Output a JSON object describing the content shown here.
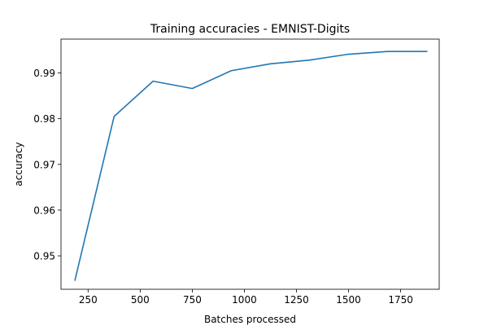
{
  "chart_data": {
    "type": "line",
    "title": "Training accuracies - EMNIST-Digits",
    "xlabel": "Batches processed",
    "ylabel": "accuracy",
    "xlim": [
      120,
      1935
    ],
    "ylim": [
      0.9427,
      0.9974
    ],
    "xticks": [
      250,
      500,
      750,
      1000,
      1250,
      1500,
      1750
    ],
    "xtick_labels": [
      "250",
      "500",
      "750",
      "1000",
      "1250",
      "1500",
      "1750"
    ],
    "yticks": [
      0.95,
      0.96,
      0.97,
      0.98,
      0.99
    ],
    "ytick_labels": [
      "0.95",
      "0.96",
      "0.97",
      "0.98",
      "0.99"
    ],
    "grid": false,
    "series": [
      {
        "color": "#1f77b4",
        "x": [
          187,
          375,
          562,
          750,
          937,
          1125,
          1312,
          1500,
          1687,
          1875
        ],
        "y": [
          0.9447,
          0.9805,
          0.9882,
          0.9866,
          0.9905,
          0.992,
          0.9928,
          0.9941,
          0.9947,
          0.9947
        ]
      }
    ]
  }
}
